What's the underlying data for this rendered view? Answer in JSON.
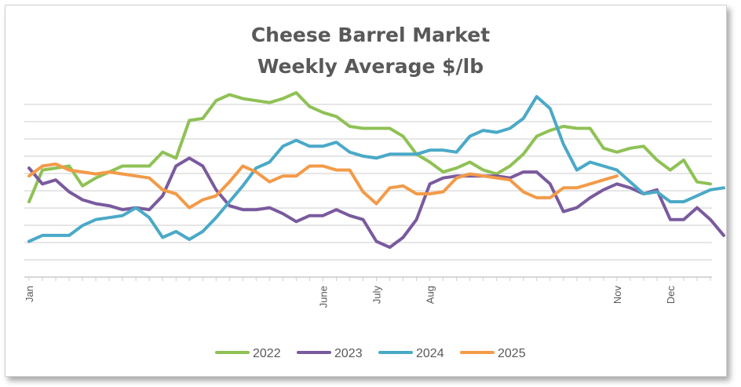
{
  "chart_data": {
    "type": "line",
    "title": "Cheese Barrel Market",
    "subtitle": "Weekly Average $/lb",
    "xlabel": "",
    "ylabel": "",
    "grid": true,
    "legend_position": "bottom",
    "x_tick_labels": [
      {
        "label": "Jan",
        "week": 1
      },
      {
        "label": "June",
        "week": 23
      },
      {
        "label": "July",
        "week": 27
      },
      {
        "label": "Aug",
        "week": 31
      },
      {
        "label": "Nov",
        "week": 45
      },
      {
        "label": "Dec",
        "week": 49
      }
    ],
    "series": [
      {
        "name": "2022",
        "color": "#8fc155",
        "values": [
          6.8,
          8.4,
          8.5,
          8.6,
          7.6,
          8.0,
          8.3,
          8.6,
          8.6,
          8.6,
          9.3,
          9.0,
          10.9,
          11.0,
          11.9,
          12.2,
          12.0,
          11.9,
          11.8,
          12.0,
          12.3,
          11.6,
          11.3,
          11.1,
          10.6,
          10.5,
          10.5,
          10.5,
          10.1,
          9.2,
          8.8,
          8.3,
          8.5,
          8.8,
          8.4,
          8.2,
          8.6,
          9.2,
          10.1,
          10.4,
          10.6,
          10.5,
          10.5,
          9.5,
          9.3,
          9.5,
          9.6,
          8.9,
          8.4,
          8.9,
          7.8,
          7.7
        ]
      },
      {
        "name": "2023",
        "color": "#7a5a9e",
        "values": [
          8.5,
          7.7,
          7.9,
          7.3,
          6.9,
          6.7,
          6.6,
          6.4,
          6.5,
          6.4,
          7.1,
          8.6,
          9.0,
          8.6,
          7.4,
          6.6,
          6.4,
          6.4,
          6.5,
          6.2,
          5.8,
          6.1,
          6.1,
          6.4,
          6.1,
          5.9,
          4.8,
          4.5,
          5.0,
          5.9,
          7.7,
          8.0,
          8.1,
          8.1,
          8.1,
          8.1,
          8.0,
          8.3,
          8.3,
          7.7,
          6.3,
          6.5,
          7.0,
          7.4,
          7.7,
          7.5,
          7.2,
          7.4,
          5.9,
          5.9,
          6.5,
          5.9,
          5.1
        ]
      },
      {
        "name": "2024",
        "color": "#4aa9c7",
        "values": [
          4.8,
          5.1,
          5.1,
          5.1,
          5.6,
          5.9,
          6.0,
          6.1,
          6.5,
          6.0,
          5.0,
          5.3,
          4.9,
          5.3,
          6.0,
          6.8,
          7.6,
          8.5,
          8.8,
          9.6,
          9.9,
          9.6,
          9.6,
          9.8,
          9.3,
          9.1,
          9.0,
          9.2,
          9.2,
          9.2,
          9.4,
          9.4,
          9.3,
          10.1,
          10.4,
          10.3,
          10.5,
          11.0,
          12.1,
          11.5,
          9.7,
          8.4,
          8.8,
          8.6,
          8.4,
          7.8,
          7.2,
          7.3,
          6.8,
          6.8,
          7.1,
          7.4,
          7.5
        ]
      },
      {
        "name": "2025",
        "color": "#f39a48",
        "values": [
          8.1,
          8.6,
          8.7,
          8.4,
          8.3,
          8.2,
          8.3,
          8.2,
          8.1,
          8.0,
          7.4,
          7.2,
          6.5,
          6.9,
          7.1,
          7.8,
          8.6,
          8.3,
          7.8,
          8.1,
          8.1,
          8.6,
          8.6,
          8.4,
          8.4,
          7.3,
          6.7,
          7.5,
          7.6,
          7.2,
          7.2,
          7.3,
          8.0,
          8.2,
          8.1,
          8.0,
          7.9,
          7.3,
          7.0,
          7.0,
          7.5,
          7.5,
          7.7,
          7.9,
          8.1
        ]
      }
    ],
    "ylim": [
      3,
      12.5
    ]
  }
}
